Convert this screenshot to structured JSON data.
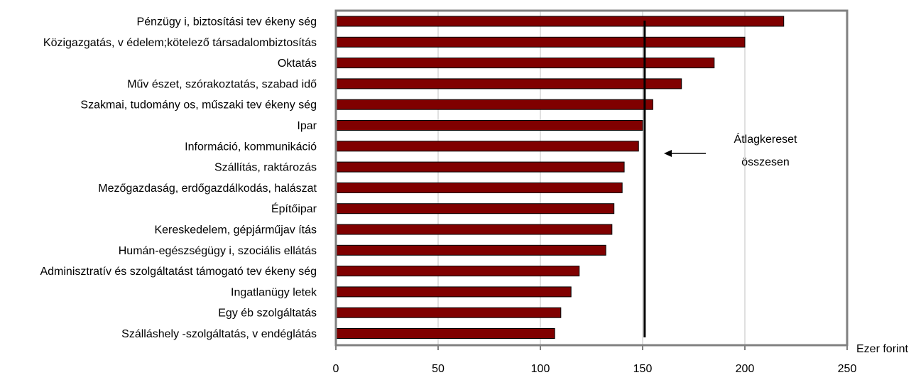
{
  "chart_data": {
    "type": "bar",
    "orientation": "horizontal",
    "categories": [
      "Pénzügy i, biztosítási tev ékeny ség",
      "Közigazgatás, v édelem;kötelező társadalombiztosítás",
      "Oktatás",
      "Műv észet, szórakoztatás, szabad idő",
      "Szakmai, tudomány os, műszaki tev ékeny ség",
      "Ipar",
      "Információ, kommunikáció",
      "Szállítás, raktározás",
      "Mezőgazdaság, erdőgazdálkodás, halászat",
      "Építőipar",
      "Kereskedelem, gépjárműjav ítás",
      "Humán-egészségügy i, szociális ellátás",
      "Adminisztratív és szolgáltatást támogató tev ékeny ség",
      "Ingatlanügy letek",
      "Egy éb szolgáltatás",
      "Szálláshely -szolgáltatás, v endéglátás"
    ],
    "values": [
      219,
      200,
      185,
      169,
      155,
      150,
      148,
      141,
      140,
      136,
      135,
      132,
      119,
      115,
      110,
      107
    ],
    "bar_color": "#800000",
    "reference_line": {
      "value": 151,
      "color": "#000000"
    },
    "annotation": {
      "lines": [
        "Átlagkereset",
        "összesen"
      ]
    },
    "x_unit_label": "Ezer forint",
    "xlim": [
      0,
      250
    ],
    "xticks": [
      "0",
      "50",
      "100",
      "150",
      "200",
      "250"
    ],
    "xtick_values": [
      0,
      50,
      100,
      150,
      200,
      250
    ],
    "grid": "vertical",
    "grid_color": "#c0c0c0",
    "frame_color": "#808080"
  }
}
